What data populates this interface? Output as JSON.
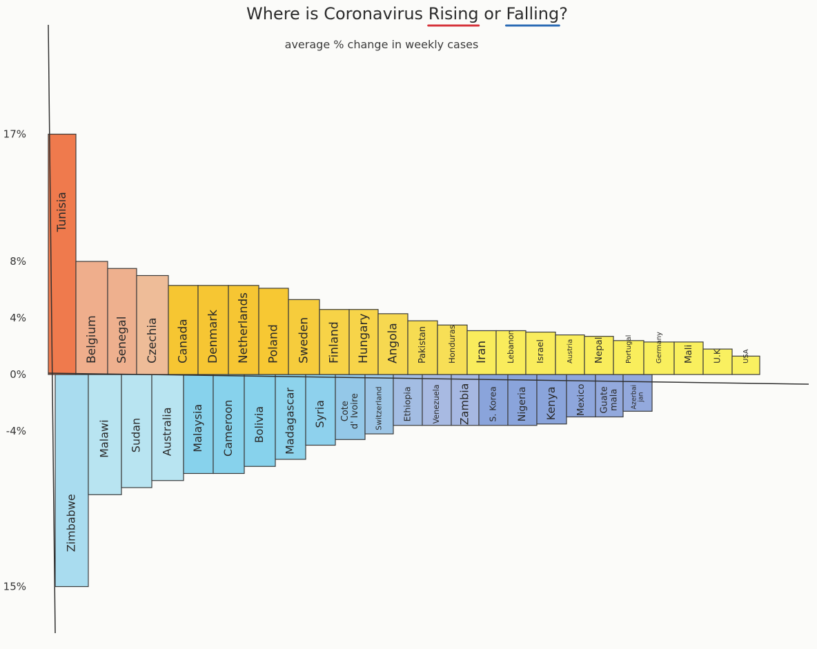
{
  "chart_data": {
    "type": "bar",
    "title": {
      "prefix": "Where is Coronavirus ",
      "rising": "Rising",
      "middle": " or ",
      "falling": "Falling",
      "suffix": "?"
    },
    "subtitle": "average % change in weekly cases",
    "ylim": [
      -15,
      17
    ],
    "y_ticks": [
      {
        "value": 17,
        "label": "17%"
      },
      {
        "value": 8,
        "label": "8%"
      },
      {
        "value": 4,
        "label": "4%"
      },
      {
        "value": 0,
        "label": "0%"
      },
      {
        "value": -4,
        "label": "-4%"
      },
      {
        "value": -15,
        "label": "- 15%"
      }
    ],
    "series": [
      {
        "name": "Rising",
        "categories": [
          "Tunisia",
          "Belgium",
          "Senegal",
          "Czechia",
          "Canada",
          "Denmark",
          "Netherlands",
          "Poland",
          "Sweden",
          "Finland",
          "Hungary",
          "Angola",
          "Pakistan",
          "Honduras",
          "Iran",
          "Lebanon",
          "Israel",
          "Austria",
          "Nepal",
          "Portugal",
          "Germany",
          "Mali",
          "U.K",
          "USA"
        ],
        "values": [
          17,
          8,
          7.5,
          7,
          6.3,
          6.3,
          6.3,
          6.1,
          5.3,
          4.6,
          4.6,
          4.3,
          3.8,
          3.5,
          3.1,
          3.1,
          3.0,
          2.8,
          2.7,
          2.4,
          2.3,
          2.3,
          1.8,
          1.3
        ],
        "colors": [
          "#ef7a4d",
          "#efae8c",
          "#eeb08e",
          "#eebc98",
          "#f6c632",
          "#f6c633",
          "#f6c633",
          "#f7c833",
          "#f6cc3c",
          "#f7d347",
          "#f7d449",
          "#f6d850",
          "#f6dc52",
          "#f7df56",
          "#f9ec5c",
          "#f9ec5c",
          "#f9ec5c",
          "#f9ed5c",
          "#f9ed5c",
          "#f9ee5c",
          "#f9ef5e",
          "#f9ef5e",
          "#f9f060",
          "#f9f060"
        ]
      },
      {
        "name": "Falling",
        "categories": [
          "Zimbabwe",
          "Malawi",
          "Sudan",
          "Australia",
          "Malaysia",
          "Cameroon",
          "Bolivia",
          "Madagascar",
          "Syria",
          "Cote d' Ivoire",
          "Switzerland",
          "Ethiopia",
          "Venezuela",
          "Zambia",
          "S. Korea",
          "Nigeria",
          "Kenya",
          "Mexico",
          "Guate-mala",
          "Azerbai-jan"
        ],
        "values": [
          -15,
          -8.5,
          -8,
          -7.5,
          -7,
          -7,
          -6.5,
          -6,
          -5,
          -4.6,
          -4.2,
          -3.6,
          -3.6,
          -3.6,
          -3.6,
          -3.6,
          -3.5,
          -3.0,
          -3.0,
          -2.6
        ],
        "colors": [
          "#a9dcef",
          "#b8e4f1",
          "#b8e4f1",
          "#b8e4f1",
          "#87d2ec",
          "#87d2ec",
          "#87d2ec",
          "#8dd3ec",
          "#8ed1ed",
          "#94c8e8",
          "#9cc5e6",
          "#a3bde3",
          "#a8bae2",
          "#a6b8e2",
          "#8aa4db",
          "#8aa4db",
          "#8aa4db",
          "#8ea6dc",
          "#93a9dd",
          "#93a9dd"
        ]
      }
    ],
    "colors": {
      "rising_underline": "#d6333a",
      "falling_underline": "#2b6bb5",
      "outline": "#3a3a3a"
    }
  }
}
